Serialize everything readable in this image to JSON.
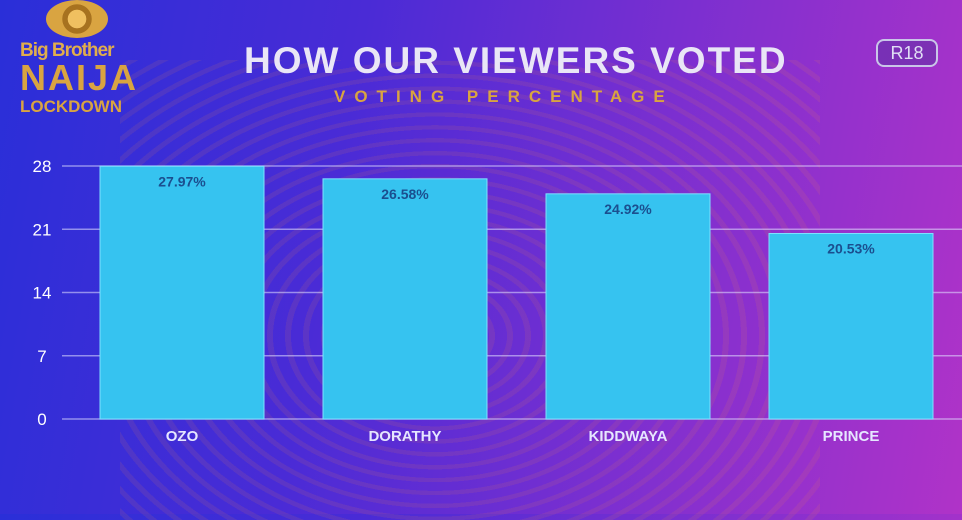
{
  "logo": {
    "line1": "Big Brother",
    "line2": "NAIJA",
    "line3": "LOCKDOWN"
  },
  "badge": "R18",
  "colors": {
    "bar": "#36c3f0",
    "title": "#e9e6f6",
    "subtitle": "#d9a441",
    "logo": "#d9a441"
  },
  "chart_data": {
    "type": "bar",
    "title": "HOW OUR VIEWERS VOTED",
    "subtitle": "VOTING PERCENTAGE",
    "categories": [
      "OZO",
      "DORATHY",
      "KIDDWAYA",
      "PRINCE"
    ],
    "values": [
      27.97,
      26.58,
      24.92,
      20.53
    ],
    "data_labels": [
      "27.97%",
      "26.58%",
      "24.92%",
      "20.53%"
    ],
    "yticks": [
      0,
      7,
      14,
      21,
      28
    ],
    "ylim": [
      0,
      28
    ],
    "grid": true,
    "xlabel": "",
    "ylabel": ""
  }
}
